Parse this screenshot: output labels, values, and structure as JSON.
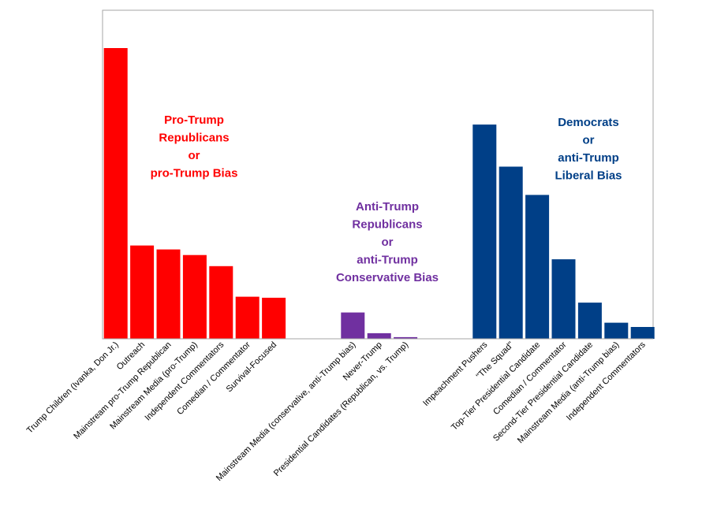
{
  "chart_data": {
    "type": "bar",
    "title": "",
    "xlabel": "",
    "ylabel": "",
    "ylim": [
      0,
      100
    ],
    "grid": false,
    "groups": [
      {
        "label_lines": [
          "Pro-Trump",
          "Republicans",
          "or",
          "pro-Trump Bias"
        ],
        "color": "#ff0000",
        "categories": [
          "Trump Children (Ivanka, Don Jr.)",
          "Outreach",
          "Mainstream pro-Trump Republican",
          "Mainstream Media (pro-Trump)",
          "Independent Commentators",
          "Comedian / Commentator",
          "Survival-Focused"
        ],
        "values": [
          88.5,
          28.4,
          27.2,
          25.5,
          22.1,
          12.8,
          12.5
        ]
      },
      {
        "label_lines": [
          "Anti-Trump",
          "Republicans",
          "or",
          "anti-Trump",
          "Conservative Bias"
        ],
        "color": "#7030a0",
        "categories": [
          "Mainstream Media (conservative, anti-Trump bias)",
          "Never-Trump",
          "Presidential Candidates (Republican, vs. Trump)"
        ],
        "values": [
          8.0,
          1.7,
          0.5
        ]
      },
      {
        "label_lines": [
          "Democrats",
          "or",
          "anti-Trump",
          "Liberal Bias"
        ],
        "color": "#003f87",
        "categories": [
          "Impeachment Pushers",
          "\"The Squad\"",
          "Top-Tier Presidential Candidate",
          "Comedian / Commentator",
          "Second-Tier Presidential Candidate",
          "Mainstream Media (anti-Trump bias)",
          "Independent Commentators"
        ],
        "values": [
          65.2,
          52.4,
          43.8,
          24.2,
          11.0,
          4.9,
          3.6
        ]
      }
    ]
  }
}
